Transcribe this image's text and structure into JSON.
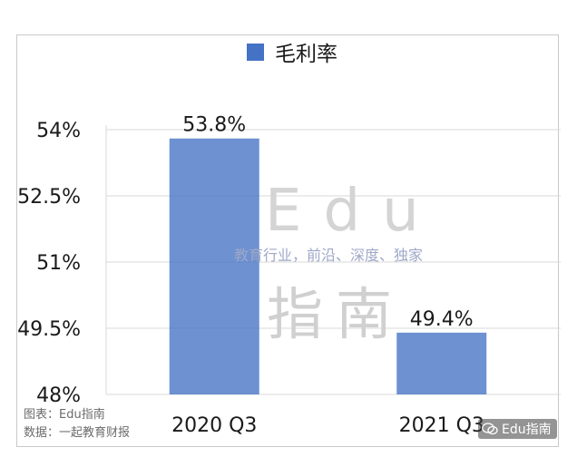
{
  "chart_data": {
    "type": "bar",
    "categories": [
      "2020 Q3",
      "2021 Q3"
    ],
    "series": [
      {
        "name": "毛利率",
        "values": [
          53.8,
          49.4
        ]
      }
    ],
    "data_labels": [
      "53.8%",
      "49.4%"
    ],
    "yticks": [
      "48%",
      "49.5%",
      "51%",
      "52.5%",
      "54%"
    ],
    "ytick_values": [
      48,
      49.5,
      51,
      52.5,
      54
    ],
    "ylim": [
      48,
      54
    ],
    "grid": true,
    "legend": "top-center",
    "bar_color": "#4472c4",
    "bar_colors": [
      "#4472c4",
      "#4472c4"
    ]
  },
  "legend": {
    "label": "毛利率"
  },
  "watermark": {
    "title": "Edu",
    "subtitle": "教育行业，前沿、深度、独家",
    "brand": "指南"
  },
  "footer": {
    "chart_source": "图表：Edu指南",
    "data_source": "数据：一起教育财报"
  },
  "wechat": {
    "label": "Edu指南",
    "icon": "wechat-icon"
  }
}
